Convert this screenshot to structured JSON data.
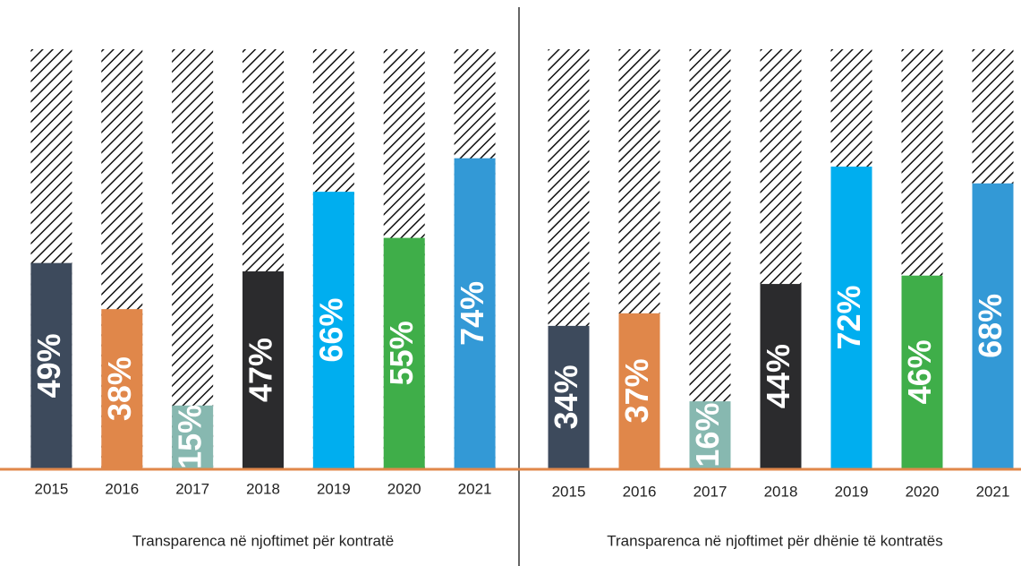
{
  "chart_data": [
    {
      "type": "bar",
      "title": "Transparenca në njoftimet për kontratë",
      "categories": [
        "2015",
        "2016",
        "2017",
        "2018",
        "2019",
        "2020",
        "2021"
      ],
      "values": [
        49,
        38,
        15,
        47,
        66,
        55,
        74
      ],
      "value_labels": [
        "49%",
        "38%",
        "15%",
        "47%",
        "66%",
        "55%",
        "74%"
      ],
      "colors": [
        "#3d4a5c",
        "#e0874a",
        "#87b8b0",
        "#2b2b2d",
        "#00aeef",
        "#3fae49",
        "#3399d6"
      ],
      "ylim": [
        0,
        100
      ]
    },
    {
      "type": "bar",
      "title": "Transparenca në njoftimet për dhënie të kontratës",
      "categories": [
        "2015",
        "2016",
        "2017",
        "2018",
        "2019",
        "2020",
        "2021"
      ],
      "values": [
        34,
        37,
        16,
        44,
        72,
        46,
        68
      ],
      "value_labels": [
        "34%",
        "37%",
        "16%",
        "44%",
        "72%",
        "46%",
        "68%"
      ],
      "colors": [
        "#3d4a5c",
        "#e0874a",
        "#87b8b0",
        "#2b2b2d",
        "#00aeef",
        "#3fae49",
        "#3399d6"
      ],
      "ylim": [
        0,
        100
      ]
    }
  ]
}
